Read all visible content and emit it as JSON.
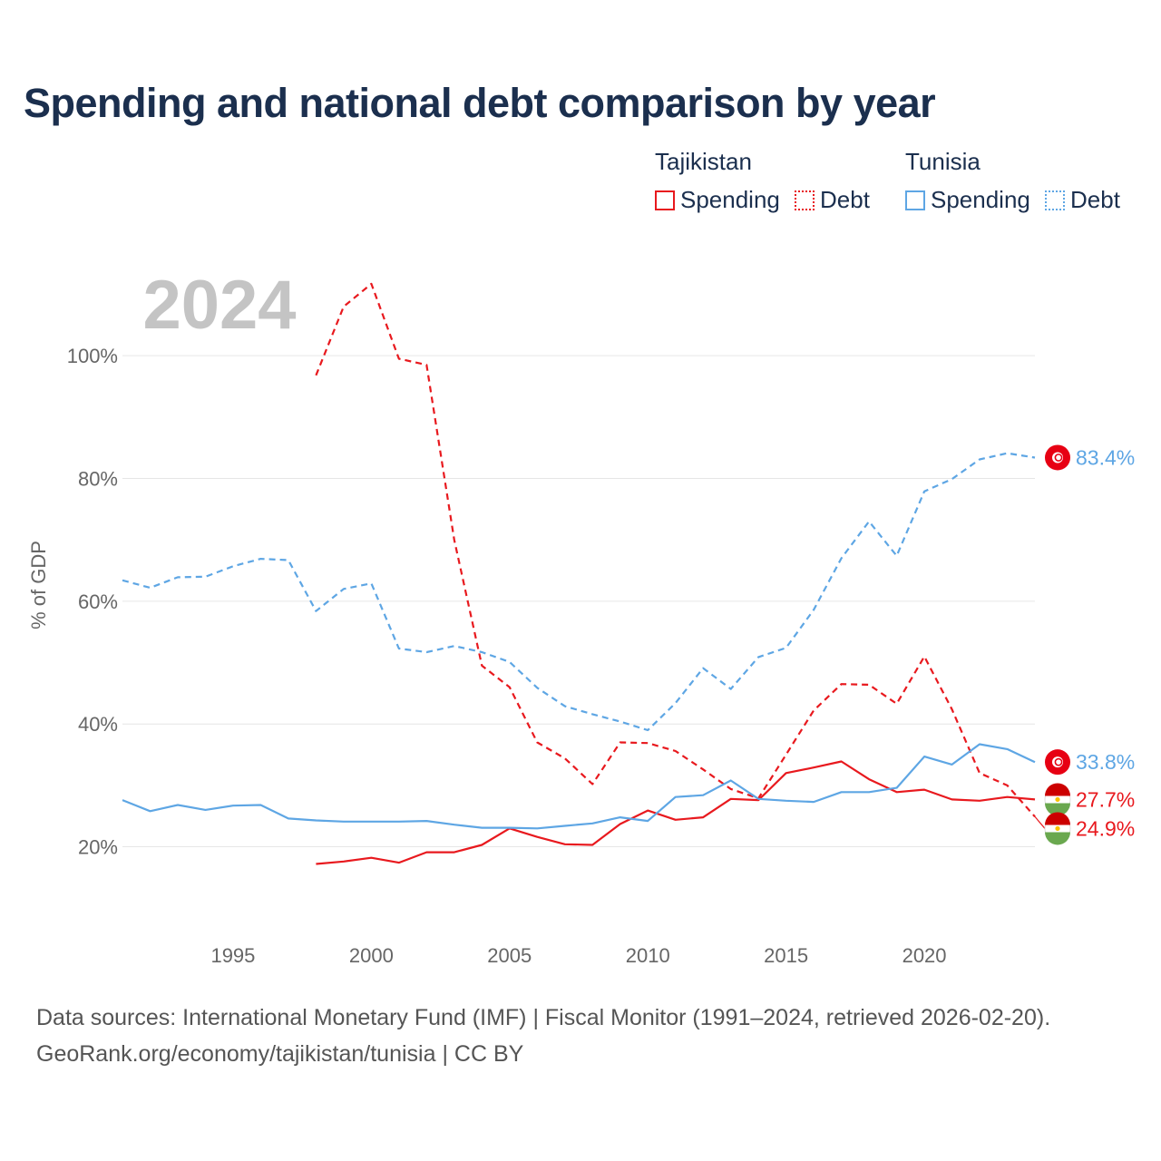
{
  "title": "Spending and national debt comparison by year",
  "legend": {
    "groups": [
      {
        "country": "Tajikistan",
        "spending": "Spending",
        "debt": "Debt"
      },
      {
        "country": "Tunisia",
        "spending": "Spending",
        "debt": "Debt"
      }
    ]
  },
  "footer": {
    "line1": "Data sources: International Monetary Fund (IMF) | Fiscal Monitor (1991–2024, retrieved 2026-02-20).",
    "line2": "GeoRank.org/economy/tajikistan/tunisia | CC BY"
  },
  "colors": {
    "tajikistan": "#e8191e",
    "tunisia": "#5ea6e4",
    "title": "#1b2f4e",
    "year_watermark": "#c4c4c4"
  },
  "chart_data": {
    "type": "line",
    "title": "Spending and national debt comparison by year",
    "ylabel": "% of GDP",
    "xlabel": "",
    "year_label": "2024",
    "xlim": [
      1991,
      2024
    ],
    "ylim": [
      9,
      121
    ],
    "xticks": [
      1995,
      2000,
      2005,
      2010,
      2015,
      2020
    ],
    "xtick_labels": [
      "1995",
      "2000",
      "2005",
      "2010",
      "2015",
      "2020"
    ],
    "yticks": [
      20,
      40,
      60,
      80,
      100
    ],
    "ytick_labels": [
      "20%",
      "40%",
      "60%",
      "80%",
      "100%"
    ],
    "grid": true,
    "series": [
      {
        "name": "Tajikistan Spending",
        "country": "Tajikistan",
        "measure": "Spending",
        "color": "#e8191e",
        "dashed": false,
        "x": [
          1998,
          1999,
          2000,
          2001,
          2002,
          2003,
          2004,
          2005,
          2006,
          2007,
          2008,
          2009,
          2010,
          2011,
          2012,
          2013,
          2014,
          2015,
          2016,
          2017,
          2018,
          2019,
          2020,
          2021,
          2022,
          2023,
          2024
        ],
        "values": [
          17.2,
          17.6,
          18.2,
          17.4,
          19.1,
          19.1,
          20.3,
          23.0,
          21.6,
          20.4,
          20.3,
          23.7,
          25.9,
          24.4,
          24.8,
          27.8,
          27.6,
          32.0,
          32.9,
          33.9,
          31.0,
          28.9,
          29.3,
          27.7,
          27.5,
          28.1,
          27.7
        ],
        "end_label": "27.7%"
      },
      {
        "name": "Tajikistan Debt",
        "country": "Tajikistan",
        "measure": "Debt",
        "color": "#e8191e",
        "dashed": true,
        "x": [
          1998,
          1999,
          2000,
          2001,
          2002,
          2003,
          2004,
          2005,
          2006,
          2007,
          2008,
          2009,
          2010,
          2011,
          2012,
          2013,
          2014,
          2015,
          2016,
          2017,
          2018,
          2019,
          2020,
          2021,
          2022,
          2023,
          2024
        ],
        "values": [
          96.8,
          108.0,
          111.7,
          99.5,
          98.5,
          70.0,
          49.5,
          46.0,
          37.0,
          34.4,
          30.2,
          37.0,
          36.9,
          35.6,
          32.6,
          29.4,
          27.9,
          35.0,
          42.2,
          46.5,
          46.4,
          43.3,
          51.0,
          42.4,
          32.0,
          30.0,
          24.9
        ],
        "end_label": "24.9%"
      },
      {
        "name": "Tunisia Spending",
        "country": "Tunisia",
        "measure": "Spending",
        "color": "#5ea6e4",
        "dashed": false,
        "x": [
          1991,
          1992,
          1993,
          1994,
          1995,
          1996,
          1997,
          1998,
          1999,
          2000,
          2001,
          2002,
          2003,
          2004,
          2005,
          2006,
          2007,
          2008,
          2009,
          2010,
          2011,
          2012,
          2013,
          2014,
          2015,
          2016,
          2017,
          2018,
          2019,
          2020,
          2021,
          2022,
          2023,
          2024
        ],
        "values": [
          27.6,
          25.8,
          26.8,
          26.0,
          26.7,
          26.8,
          24.6,
          24.3,
          24.1,
          24.1,
          24.1,
          24.2,
          23.6,
          23.1,
          23.1,
          23.0,
          23.4,
          23.8,
          24.8,
          24.2,
          28.1,
          28.4,
          30.8,
          27.8,
          27.5,
          27.3,
          28.9,
          28.9,
          29.6,
          34.7,
          33.4,
          36.7,
          35.9,
          33.8
        ],
        "end_label": "33.8%"
      },
      {
        "name": "Tunisia Debt",
        "country": "Tunisia",
        "measure": "Debt",
        "color": "#5ea6e4",
        "dashed": true,
        "x": [
          1991,
          1992,
          1993,
          1994,
          1995,
          1996,
          1997,
          1998,
          1999,
          2000,
          2001,
          2002,
          2003,
          2004,
          2005,
          2006,
          2007,
          2008,
          2009,
          2010,
          2011,
          2012,
          2013,
          2014,
          2015,
          2016,
          2017,
          2018,
          2019,
          2020,
          2021,
          2022,
          2023,
          2024
        ],
        "values": [
          63.4,
          62.2,
          63.9,
          64.0,
          65.7,
          66.9,
          66.7,
          58.4,
          62.0,
          62.9,
          52.3,
          51.7,
          52.7,
          51.7,
          50.1,
          45.9,
          42.9,
          41.6,
          40.4,
          39.0,
          43.4,
          49.1,
          45.7,
          50.9,
          52.4,
          58.6,
          67.0,
          73.0,
          67.4,
          77.9,
          79.9,
          83.1,
          84.1,
          83.4
        ],
        "end_label": "83.4%"
      }
    ]
  }
}
